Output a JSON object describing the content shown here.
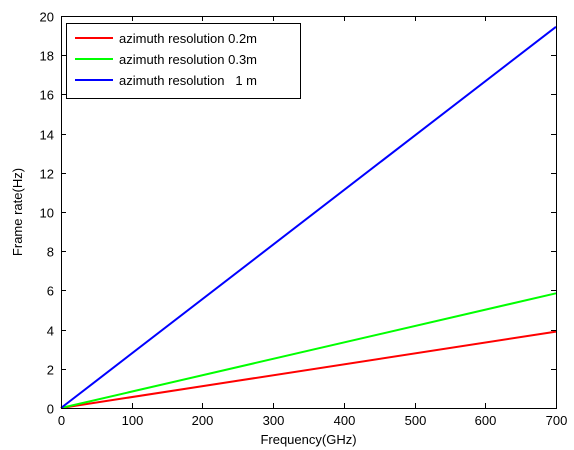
{
  "chart_data": {
    "type": "line",
    "title": "",
    "xlabel": "Frequency(GHz)",
    "ylabel": "Frame rate(Hz)",
    "xlim": [
      0,
      700
    ],
    "ylim": [
      0,
      20
    ],
    "xticks": [
      0,
      100,
      200,
      300,
      400,
      500,
      600,
      700
    ],
    "yticks": [
      0,
      2,
      4,
      6,
      8,
      10,
      12,
      14,
      16,
      18,
      20
    ],
    "xtick_labels": [
      "0",
      "100",
      "200",
      "300",
      "400",
      "500",
      "600",
      "700"
    ],
    "ytick_labels": [
      "0",
      "2",
      "4",
      "6",
      "8",
      "10",
      "12",
      "14",
      "16",
      "18",
      "20"
    ],
    "grid": false,
    "legend_position": "top-left",
    "series": [
      {
        "name": "azimuth resolution 0.2m",
        "color": "#ff0000",
        "x": [
          0,
          700
        ],
        "y": [
          0,
          3.9
        ]
      },
      {
        "name": "azimuth resolution 0.3m",
        "color": "#00ff00",
        "x": [
          0,
          700
        ],
        "y": [
          0,
          5.85
        ]
      },
      {
        "name": "azimuth resolution   1 m",
        "color": "#0000ff",
        "x": [
          0,
          700
        ],
        "y": [
          0,
          19.45
        ]
      }
    ]
  }
}
